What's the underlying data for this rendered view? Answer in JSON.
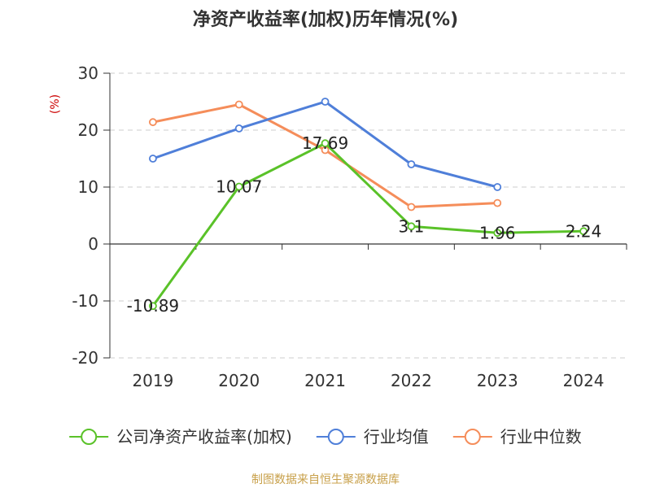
{
  "chart_data": {
    "type": "line",
    "title": "净资产收益率(加权)历年情况(%)",
    "ylabel": "(%)",
    "xlabel": "",
    "ylim": [
      -20,
      30
    ],
    "yticks": [
      30,
      20,
      10,
      0,
      -10,
      -20
    ],
    "grid": true,
    "legend_position": "bottom",
    "categories": [
      "2019",
      "2020",
      "2021",
      "2022",
      "2023",
      "2024"
    ],
    "series": [
      {
        "name": "公司净资产收益率(加权)",
        "color": "#5ac229",
        "values": [
          -10.89,
          10.07,
          17.69,
          3.1,
          1.96,
          2.24
        ],
        "labels": [
          "-10.89",
          "10.07",
          "17.69",
          "3.1",
          "1.96",
          "2.24"
        ]
      },
      {
        "name": "行业均值",
        "color": "#4f7fd9",
        "values": [
          15.0,
          20.3,
          25.0,
          14.0,
          10.0,
          null
        ]
      },
      {
        "name": "行业中位数",
        "color": "#f58d5a",
        "values": [
          21.4,
          24.5,
          16.5,
          6.5,
          7.2,
          null
        ]
      }
    ]
  },
  "source_text": "制图数据来自恒生聚源数据库"
}
